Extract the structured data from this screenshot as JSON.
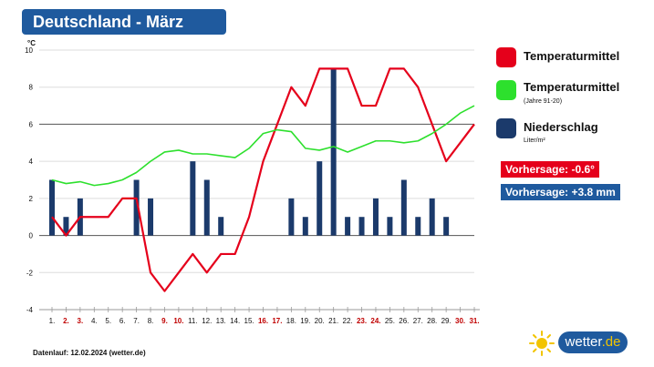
{
  "title": "Deutschland - März",
  "unit_label": "°C",
  "legend": {
    "temp": {
      "label": "Temperaturmittel",
      "color": "#e5001b"
    },
    "clim": {
      "label": "Temperaturmittel",
      "sub": "(Jahre 91-20)",
      "color": "#2de02d"
    },
    "rain": {
      "label": "Niederschlag",
      "sub": "Liter/m²",
      "color": "#1b3a6b"
    }
  },
  "forecast": {
    "temp_label": "Vorhersage: -0.6°",
    "temp_color": "#e5001b",
    "rain_label": "Vorhersage: +3.8 mm",
    "rain_color": "#1f5a9e"
  },
  "footer": "Datenlauf: 12.02.2024 (wetter.de)",
  "logo": {
    "text": "wetter",
    "suffix": ".de"
  },
  "chart_data": {
    "type": "line+bar",
    "title": "Deutschland - März",
    "ylabel": "°C",
    "ylim": [
      -4,
      10
    ],
    "yticks": [
      -4,
      -2,
      0,
      2,
      4,
      6,
      8,
      10
    ],
    "reference_line": 6,
    "categories": [
      "1.",
      "2.",
      "3.",
      "4.",
      "5.",
      "6.",
      "7.",
      "8.",
      "9.",
      "10.",
      "11.",
      "12.",
      "13.",
      "14.",
      "15.",
      "16.",
      "17.",
      "18.",
      "19.",
      "20.",
      "21.",
      "22.",
      "23.",
      "24.",
      "25.",
      "26.",
      "27.",
      "28.",
      "29.",
      "30.",
      "31."
    ],
    "weekend_days": [
      1,
      2,
      8,
      9,
      15,
      16,
      22,
      23,
      29,
      30
    ],
    "series": [
      {
        "name": "Temperaturmittel",
        "type": "line",
        "color": "#e5001b",
        "values": [
          1,
          0,
          1,
          1,
          1,
          2,
          2,
          -2,
          -3,
          -2,
          -1,
          -2,
          -1,
          -1,
          1,
          4,
          6,
          8,
          7,
          9,
          9,
          9,
          7,
          7,
          9,
          9,
          8,
          6,
          4,
          5,
          6
        ]
      },
      {
        "name": "Temperaturmittel (Jahre 91-20)",
        "type": "line",
        "color": "#2de02d",
        "values": [
          3.0,
          2.8,
          2.9,
          2.7,
          2.8,
          3.0,
          3.4,
          4.0,
          4.5,
          4.6,
          4.4,
          4.4,
          4.3,
          4.2,
          4.7,
          5.5,
          5.7,
          5.6,
          4.7,
          4.6,
          4.8,
          4.5,
          4.8,
          5.1,
          5.1,
          5.0,
          5.1,
          5.5,
          6.0,
          6.6,
          7.0
        ]
      },
      {
        "name": "Niederschlag",
        "type": "bar",
        "color": "#1b3a6b",
        "unit": "Liter/m²",
        "values": [
          3,
          1,
          2,
          0,
          0,
          0,
          3,
          2,
          0,
          0,
          4,
          3,
          1,
          0,
          0,
          0,
          0,
          2,
          1,
          4,
          9,
          1,
          1,
          2,
          1,
          3,
          1,
          2,
          1,
          0,
          0
        ]
      }
    ]
  }
}
